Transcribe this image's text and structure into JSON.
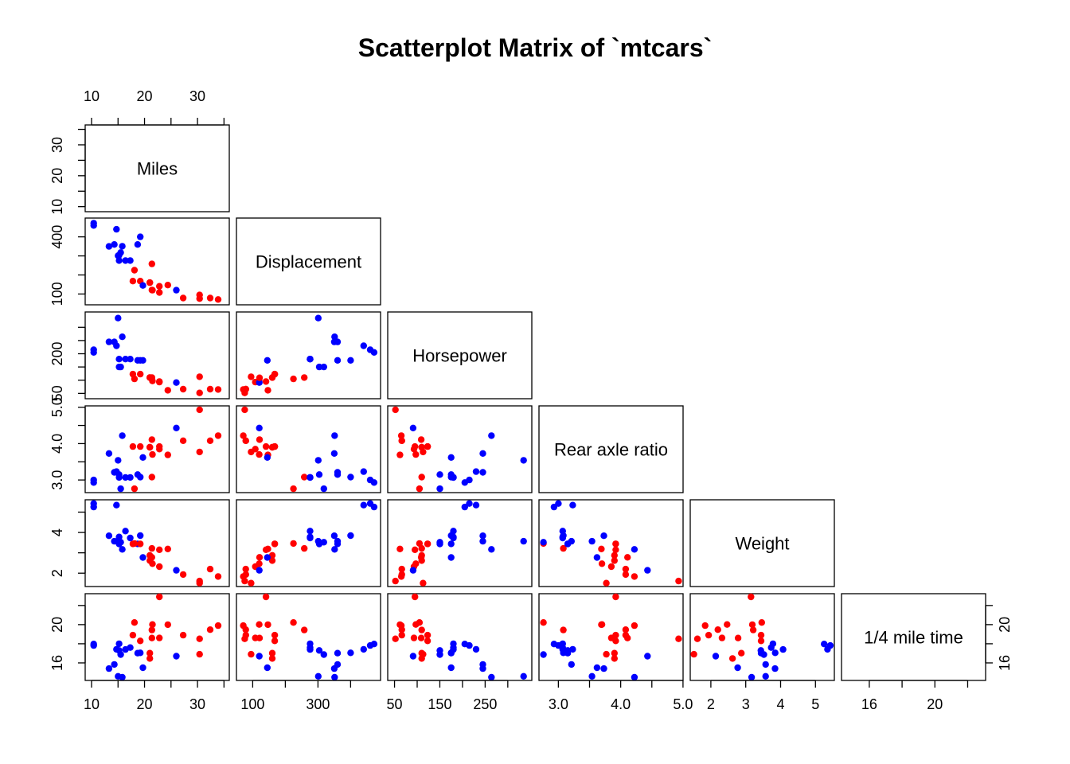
{
  "chart_data": {
    "type": "scatter",
    "title": "Scatterplot Matrix of `mtcars`",
    "variables": [
      "Miles",
      "Displacement",
      "Horsepower",
      "Rear axle ratio",
      "Weight",
      "1/4 mile time"
    ],
    "layout": "lower-triangle",
    "group_colors": [
      "#0000ff",
      "#ff0000"
    ],
    "axes": [
      {
        "range": [
          9.4,
          35.4
        ],
        "ticks": [
          10,
          15,
          20,
          25,
          30,
          35
        ],
        "labels": [
          "10",
          "",
          "20",
          "",
          "30",
          ""
        ]
      },
      {
        "range": [
          60,
          482
        ],
        "ticks": [
          100,
          200,
          300,
          400
        ],
        "labels": [
          "100",
          "",
          "300",
          ""
        ]
      },
      {
        "range": [
          42,
          346
        ],
        "ticks": [
          50,
          100,
          150,
          200,
          250,
          300
        ],
        "labels": [
          "50",
          "",
          "150",
          "",
          "250",
          ""
        ]
      },
      {
        "range": [
          2.74,
          4.95
        ],
        "ticks": [
          3.0,
          3.5,
          4.0,
          4.5,
          5.0
        ],
        "labels": [
          "3.0",
          "",
          "4.0",
          "",
          "5.0"
        ]
      },
      {
        "range": [
          1.5,
          5.45
        ],
        "ticks": [
          2,
          3,
          4,
          5
        ],
        "labels": [
          "2",
          "3",
          "4",
          "5"
        ]
      },
      {
        "range": [
          14.5,
          22.9
        ],
        "ticks": [
          16,
          18,
          20,
          22
        ],
        "labels": [
          "16",
          "",
          "20",
          ""
        ]
      }
    ],
    "left_axes": [
      {
        "ticks": [
          10,
          15,
          20,
          25,
          30,
          35
        ],
        "labels": [
          "10",
          "",
          "20",
          "",
          "30",
          ""
        ]
      },
      {
        "ticks": [
          100,
          200,
          300,
          400
        ],
        "labels": [
          "100",
          "",
          "",
          "400"
        ]
      },
      {
        "ticks": [
          50,
          100,
          150,
          200,
          250,
          300
        ],
        "labels": [
          "50",
          "",
          "",
          "200",
          "",
          ""
        ]
      },
      {
        "ticks": [
          3.0,
          3.5,
          4.0,
          4.5,
          5.0
        ],
        "labels": [
          "3.0",
          "",
          "4.0",
          "",
          "5.0"
        ]
      },
      {
        "ticks": [
          2,
          3,
          4,
          5
        ],
        "labels": [
          "2",
          "",
          "4",
          ""
        ]
      },
      {
        "ticks": [
          16,
          18,
          20,
          22
        ],
        "labels": [
          "16",
          "",
          "20",
          ""
        ]
      }
    ],
    "right_axis": {
      "ticks": [
        16,
        18,
        20,
        22
      ],
      "labels": [
        "16",
        "",
        "20",
        ""
      ]
    },
    "points": [
      {
        "g": 1,
        "v": [
          21.0,
          160.0,
          110,
          3.9,
          2.62,
          16.46
        ]
      },
      {
        "g": 1,
        "v": [
          21.0,
          160.0,
          110,
          3.9,
          2.875,
          17.02
        ]
      },
      {
        "g": 1,
        "v": [
          22.8,
          108.0,
          93,
          3.85,
          2.32,
          18.61
        ]
      },
      {
        "g": 1,
        "v": [
          21.4,
          258.0,
          110,
          3.08,
          3.215,
          19.44
        ]
      },
      {
        "g": 0,
        "v": [
          18.7,
          360.0,
          175,
          3.15,
          3.44,
          17.02
        ]
      },
      {
        "g": 1,
        "v": [
          18.1,
          225.0,
          105,
          2.76,
          3.46,
          20.22
        ]
      },
      {
        "g": 0,
        "v": [
          14.3,
          360.0,
          245,
          3.21,
          3.57,
          15.84
        ]
      },
      {
        "g": 1,
        "v": [
          24.4,
          146.7,
          62,
          3.69,
          3.19,
          20.0
        ]
      },
      {
        "g": 1,
        "v": [
          22.8,
          140.8,
          95,
          3.92,
          3.15,
          22.9
        ]
      },
      {
        "g": 1,
        "v": [
          19.2,
          167.6,
          123,
          3.92,
          3.44,
          18.3
        ]
      },
      {
        "g": 1,
        "v": [
          17.8,
          167.6,
          123,
          3.92,
          3.44,
          18.9
        ]
      },
      {
        "g": 0,
        "v": [
          16.4,
          275.8,
          180,
          3.07,
          4.07,
          17.4
        ]
      },
      {
        "g": 0,
        "v": [
          17.3,
          275.8,
          180,
          3.07,
          3.73,
          17.6
        ]
      },
      {
        "g": 0,
        "v": [
          15.2,
          275.8,
          180,
          3.07,
          3.78,
          18.0
        ]
      },
      {
        "g": 0,
        "v": [
          10.4,
          472.0,
          205,
          2.93,
          5.25,
          17.98
        ]
      },
      {
        "g": 0,
        "v": [
          10.4,
          460.0,
          215,
          3.0,
          5.424,
          17.82
        ]
      },
      {
        "g": 0,
        "v": [
          14.7,
          440.0,
          230,
          3.23,
          5.345,
          17.42
        ]
      },
      {
        "g": 1,
        "v": [
          32.4,
          78.7,
          66,
          4.08,
          2.2,
          19.47
        ]
      },
      {
        "g": 1,
        "v": [
          30.4,
          75.7,
          52,
          4.93,
          1.615,
          18.52
        ]
      },
      {
        "g": 1,
        "v": [
          33.9,
          71.1,
          65,
          4.22,
          1.835,
          19.9
        ]
      },
      {
        "g": 1,
        "v": [
          21.5,
          120.1,
          97,
          3.7,
          2.465,
          20.01
        ]
      },
      {
        "g": 0,
        "v": [
          15.5,
          318.0,
          150,
          2.76,
          3.52,
          16.87
        ]
      },
      {
        "g": 0,
        "v": [
          15.2,
          304.0,
          150,
          3.15,
          3.435,
          17.3
        ]
      },
      {
        "g": 0,
        "v": [
          13.3,
          350.0,
          245,
          3.73,
          3.84,
          15.41
        ]
      },
      {
        "g": 0,
        "v": [
          19.2,
          400.0,
          175,
          3.08,
          3.845,
          17.05
        ]
      },
      {
        "g": 1,
        "v": [
          27.3,
          79.0,
          66,
          4.08,
          1.935,
          18.9
        ]
      },
      {
        "g": 0,
        "v": [
          26.0,
          120.3,
          91,
          4.43,
          2.14,
          16.7
        ]
      },
      {
        "g": 1,
        "v": [
          30.4,
          95.1,
          113,
          3.77,
          1.513,
          16.9
        ]
      },
      {
        "g": 0,
        "v": [
          15.8,
          351.0,
          264,
          4.22,
          3.17,
          14.5
        ]
      },
      {
        "g": 0,
        "v": [
          19.7,
          145.0,
          175,
          3.62,
          2.77,
          15.5
        ]
      },
      {
        "g": 0,
        "v": [
          15.0,
          301.0,
          335,
          3.54,
          3.57,
          14.6
        ]
      },
      {
        "g": 1,
        "v": [
          21.4,
          121.0,
          109,
          4.11,
          2.78,
          18.6
        ]
      }
    ]
  }
}
